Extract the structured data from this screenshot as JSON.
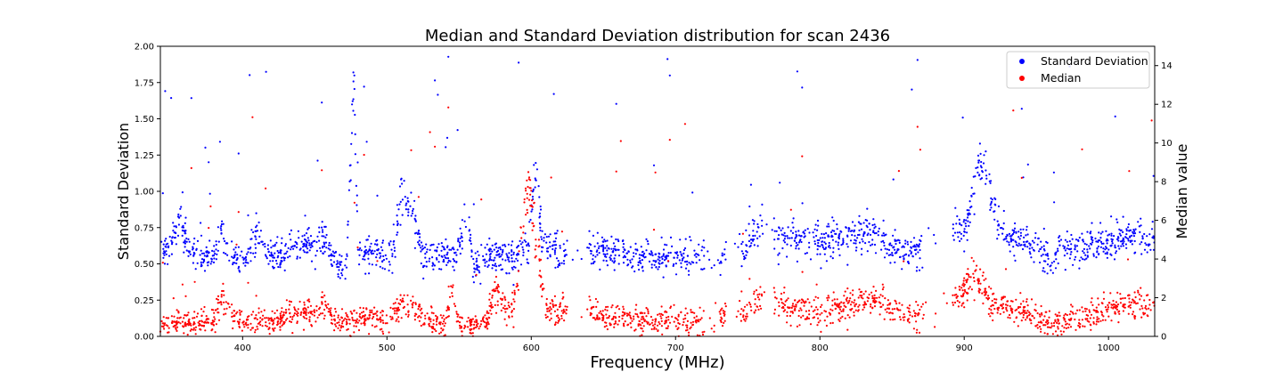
{
  "chart_data": {
    "type": "scatter",
    "title": "Median and Standard Deviation distribution for scan 2436",
    "xlabel": "Frequency (MHz)",
    "ylabel_left": "Standard Deviation",
    "ylabel_right": "Median value",
    "xlim": [
      343,
      1032
    ],
    "ylim_left": [
      0,
      2.0
    ],
    "ylim_right": [
      0,
      15
    ],
    "x_ticks": [
      400,
      500,
      600,
      700,
      800,
      900,
      1000
    ],
    "y_ticks_left": [
      "0.00",
      "0.25",
      "0.50",
      "0.75",
      "1.00",
      "1.25",
      "1.50",
      "1.75",
      "2.00"
    ],
    "y_ticks_right": [
      "0",
      "2",
      "4",
      "6",
      "8",
      "10",
      "12",
      "14"
    ],
    "grid": false,
    "legend_position": "top-right",
    "legend": [
      "Standard Deviation",
      "Median"
    ],
    "colors": {
      "std": "#0000ff",
      "median": "#ff0000"
    },
    "series": [
      {
        "name": "Standard Deviation",
        "axis": "left",
        "color": "#0000ff",
        "profile_x": [
          343,
          350,
          356,
          362,
          370,
          380,
          385,
          390,
          400,
          410,
          420,
          430,
          440,
          450,
          455,
          465,
          472,
          477,
          480,
          485,
          490,
          500,
          505,
          510,
          515,
          520,
          525,
          530,
          540,
          548,
          555,
          560,
          565,
          570,
          580,
          590,
          598,
          603,
          608,
          615,
          625,
          640,
          650,
          660,
          665,
          675,
          690,
          700,
          710,
          720,
          730,
          745,
          757,
          770,
          780,
          790,
          800,
          810,
          820,
          826,
          830,
          840,
          847,
          852,
          860,
          870,
          885,
          895,
          900,
          905,
          910,
          915,
          920,
          925,
          930,
          940,
          950,
          960,
          970,
          980,
          990,
          1000,
          1010,
          1020,
          1032
        ],
        "profile_y": [
          0.55,
          0.6,
          0.85,
          0.6,
          0.55,
          0.55,
          0.75,
          0.6,
          0.5,
          0.7,
          0.55,
          0.6,
          0.62,
          0.65,
          0.68,
          0.5,
          0.45,
          1.8,
          0.6,
          0.6,
          0.6,
          0.55,
          0.6,
          1.0,
          0.9,
          0.75,
          0.55,
          0.55,
          0.55,
          0.55,
          0.85,
          0.5,
          0.5,
          0.55,
          0.55,
          0.55,
          0.6,
          1.2,
          0.6,
          0.6,
          0.55,
          0.6,
          0.6,
          0.6,
          0.55,
          0.55,
          0.55,
          0.55,
          0.55,
          0.55,
          0.55,
          0.6,
          0.75,
          0.7,
          0.7,
          0.67,
          0.65,
          0.67,
          0.7,
          0.72,
          0.72,
          0.72,
          0.62,
          0.6,
          0.6,
          0.6,
          0.7,
          0.75,
          0.7,
          0.9,
          1.2,
          1.1,
          0.95,
          0.75,
          0.68,
          0.65,
          0.6,
          0.55,
          0.6,
          0.6,
          0.63,
          0.66,
          0.67,
          0.67,
          0.67
        ],
        "spread": 0.07,
        "n_points": 2300,
        "gaps": [
          [
            625,
            640
          ],
          [
            720,
            730
          ],
          [
            735,
            745
          ],
          [
            760,
            768
          ],
          [
            872,
            892
          ]
        ]
      },
      {
        "name": "Median",
        "axis": "right",
        "color": "#ff0000",
        "profile_x": [
          343,
          350,
          360,
          370,
          380,
          386,
          392,
          400,
          410,
          420,
          430,
          440,
          450,
          455,
          465,
          475,
          485,
          490,
          500,
          505,
          510,
          515,
          520,
          530,
          540,
          545,
          550,
          560,
          570,
          575,
          585,
          590,
          598,
          603,
          610,
          625,
          640,
          650,
          660,
          680,
          700,
          720,
          730,
          745,
          757,
          770,
          780,
          790,
          800,
          810,
          820,
          830,
          840,
          850,
          860,
          870,
          885,
          895,
          900,
          905,
          910,
          915,
          920,
          930,
          940,
          950,
          960,
          970,
          980,
          990,
          1000,
          1010,
          1020,
          1032
        ],
        "profile_y": [
          0.6,
          0.7,
          0.9,
          0.6,
          0.8,
          2.0,
          1.2,
          0.8,
          0.9,
          0.8,
          1.0,
          1.2,
          1.3,
          1.6,
          0.8,
          0.7,
          1.0,
          1.2,
          0.6,
          1.4,
          1.6,
          1.4,
          1.3,
          0.8,
          0.5,
          2.5,
          0.6,
          0.6,
          0.8,
          2.5,
          1.0,
          2.5,
          8.0,
          5.0,
          1.4,
          1.3,
          1.3,
          1.0,
          1.0,
          0.8,
          0.8,
          0.7,
          1.0,
          1.2,
          2.0,
          1.8,
          1.6,
          1.5,
          1.3,
          1.5,
          1.6,
          1.8,
          1.8,
          1.5,
          1.2,
          1.0,
          1.5,
          2.0,
          2.3,
          3.3,
          2.8,
          2.0,
          1.7,
          1.5,
          1.3,
          1.0,
          0.8,
          0.8,
          0.9,
          1.1,
          1.4,
          1.6,
          1.6,
          1.7
        ],
        "spread": 0.45,
        "n_points": 2300,
        "gaps": [
          [
            625,
            640
          ],
          [
            720,
            730
          ],
          [
            735,
            745
          ],
          [
            760,
            768
          ],
          [
            872,
            892
          ]
        ]
      }
    ]
  }
}
